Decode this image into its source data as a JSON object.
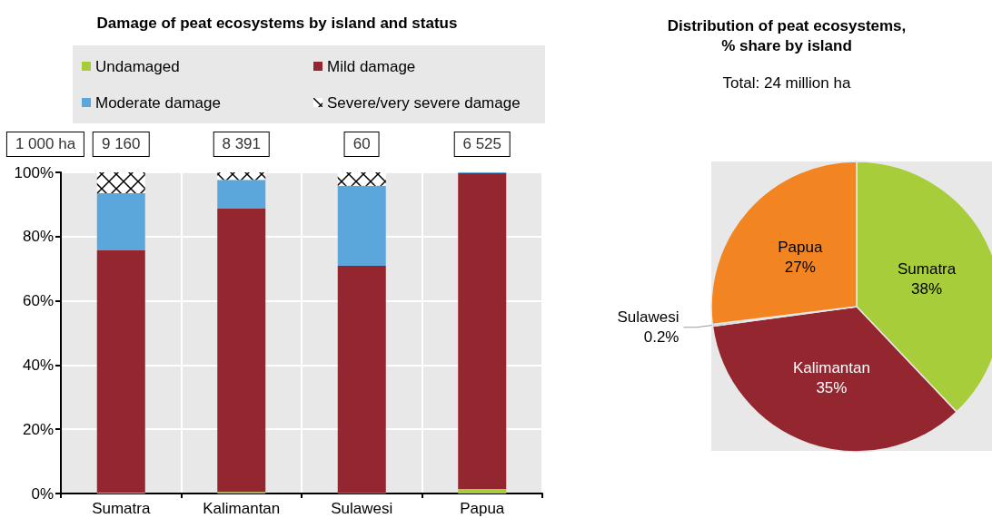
{
  "chart_data": [
    {
      "type": "bar",
      "title": "Damage of peat ecosystems by island and status",
      "stacked": true,
      "categories": [
        "Sumatra",
        "Kalimantan",
        "Sulawesi",
        "Papua"
      ],
      "series": [
        {
          "name": "Undamaged",
          "color": "#a8cd3a",
          "values": [
            0.3,
            0.5,
            0.2,
            1.4
          ]
        },
        {
          "name": "Mild damage",
          "color": "#93262e",
          "values": [
            75.4,
            88.2,
            70.7,
            98.3
          ]
        },
        {
          "name": "Moderate damage",
          "color": "#5ba7dc",
          "values": [
            17.8,
            9.0,
            24.9,
            0.3
          ]
        },
        {
          "name": "Severe/very severe damage",
          "color": "#ffffff",
          "values": [
            6.5,
            2.3,
            4.2,
            0
          ]
        }
      ],
      "ylim": [
        0,
        100
      ],
      "yticks": [
        {
          "value": 0,
          "label": "0%"
        },
        {
          "value": 20,
          "label": "20%"
        },
        {
          "value": 40,
          "label": "40%"
        },
        {
          "value": 60,
          "label": "60%"
        },
        {
          "value": 80,
          "label": "80%"
        },
        {
          "value": 100,
          "label": "100%"
        }
      ],
      "annotations": [
        "1 000 ha",
        "9 160",
        "8 391",
        "60",
        "6 525"
      ],
      "grid": true,
      "legend": "top"
    },
    {
      "type": "pie",
      "title": "Distribution of peat ecosystems,\n% share by island",
      "subtitle": "Total: 24 million ha",
      "categories": [
        "Sumatra",
        "Kalimantan",
        "Sulawesi",
        "Papua"
      ],
      "values": [
        38,
        35,
        0.2,
        27
      ],
      "colors": [
        "#a8cd3a",
        "#93262e",
        "#5ba7dc",
        "#f28522"
      ],
      "value_labels": [
        "38%",
        "35%",
        "0.2%",
        "27%"
      ],
      "legend": false
    }
  ]
}
